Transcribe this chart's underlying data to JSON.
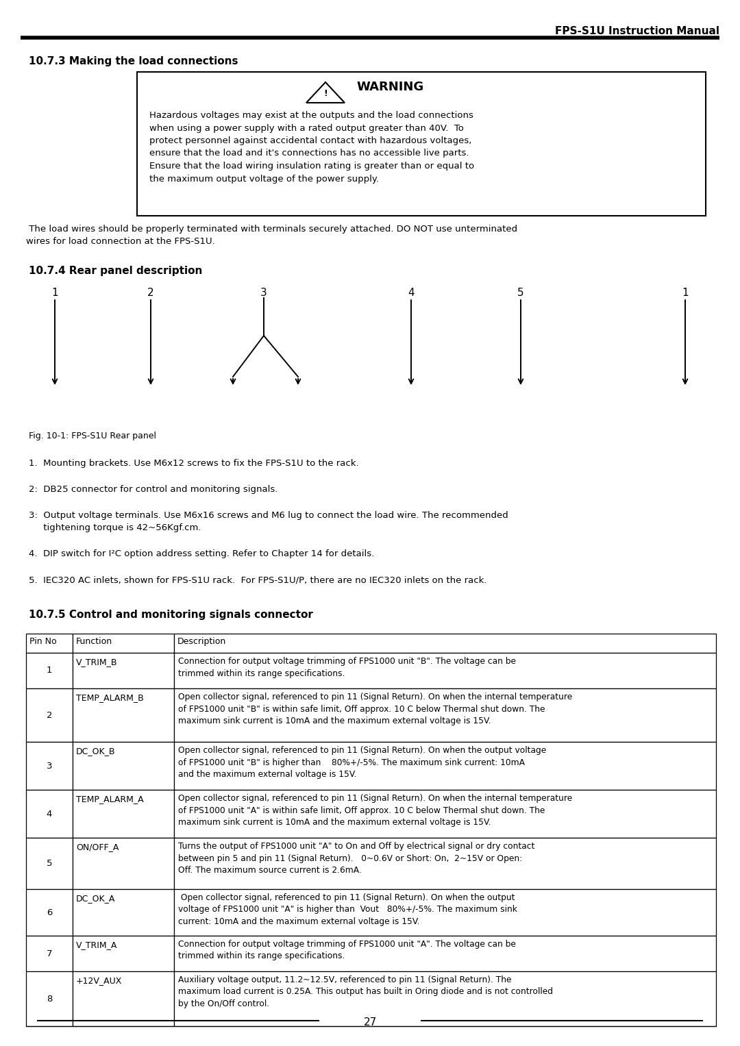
{
  "header_text": "FPS-S1U Instruction Manual",
  "section_107_3": "10.7.3 Making the load connections",
  "warning_title": "WARNING",
  "warning_body": "Hazardous voltages may exist at the outputs and the load connections\nwhen using a power supply with a rated output greater than 40V.  To\nprotect personnel against accidental contact with hazardous voltages,\nensure that the load and it's connections has no accessible live parts.\nEnsure that the load wiring insulation rating is greater than or equal to\nthe maximum output voltage of the power supply.",
  "load_wire_text": " The load wires should be properly terminated with terminals securely attached. DO NOT use unterminated\nwires for load connection at the FPS-S1U.",
  "section_107_4": "10.7.4 Rear panel description",
  "fig_caption": "Fig. 10-1: FPS-S1U Rear panel",
  "numbered_items": [
    "1.  Mounting brackets. Use M6x12 screws to fix the FPS-S1U to the rack.",
    "2:  DB25 connector for control and monitoring signals.",
    "3:  Output voltage terminals. Use M6x16 screws and M6 lug to connect the load wire. The recommended\n     tightening torque is 42~56Kgf.cm.",
    "4.  DIP switch for I²C option address setting. Refer to Chapter 14 for details.",
    "5.  IEC320 AC inlets, shown for FPS-S1U rack.  For FPS-S1U/P, there are no IEC320 inlets on the rack."
  ],
  "section_107_5": "10.7.5 Control and monitoring signals connector",
  "table_headers": [
    "Pin No",
    "Function",
    "Description"
  ],
  "table_rows": [
    [
      "1",
      "V_TRIM_B",
      "Connection for output voltage trimming of FPS1000 unit \"B\". The voltage can be\ntrimmed within its range specifications."
    ],
    [
      "2",
      "TEMP_ALARM_B",
      "Open collector signal, referenced to pin 11 (Signal Return). On when the internal temperature\nof FPS1000 unit \"B\" is within safe limit, Off approx. 10 C below Thermal shut down. The\nmaximum sink current is 10mA and the maximum external voltage is 15V."
    ],
    [
      "3",
      "DC_OK_B",
      "Open collector signal, referenced to pin 11 (Signal Return). On when the output voltage\nof FPS1000 unit \"B\" is higher than    80%+/-5%. The maximum sink current: 10mA\nand the maximum external voltage is 15V."
    ],
    [
      "4",
      "TEMP_ALARM_A",
      "Open collector signal, referenced to pin 11 (Signal Return). On when the internal temperature\nof FPS1000 unit \"A\" is within safe limit, Off approx. 10 C below Thermal shut down. The\nmaximum sink current is 10mA and the maximum external voltage is 15V."
    ],
    [
      "5",
      "ON/OFF_A",
      "Turns the output of FPS1000 unit \"A\" to On and Off by electrical signal or dry contact\nbetween pin 5 and pin 11 (Signal Return).   0~0.6V or Short: On,  2~15V or Open:\nOff. The maximum source current is 2.6mA."
    ],
    [
      "6",
      "DC_OK_A",
      " Open collector signal, referenced to pin 11 (Signal Return). On when the output\nvoltage of FPS1000 unit \"A\" is higher than  Vout   80%+/-5%. The maximum sink\ncurrent: 10mA and the maximum external voltage is 15V."
    ],
    [
      "7",
      "V_TRIM_A",
      "Connection for output voltage trimming of FPS1000 unit \"A\". The voltage can be\ntrimmed within its range specifications."
    ],
    [
      "8",
      "+12V_AUX",
      "Auxiliary voltage output, 11.2~12.5V, referenced to pin 11 (Signal Return). The\nmaximum load current is 0.25A. This output has built in Oring diode and is not controlled\nby the On/Off control."
    ]
  ],
  "page_number": "27",
  "bg_color": "#ffffff",
  "text_color": "#000000"
}
